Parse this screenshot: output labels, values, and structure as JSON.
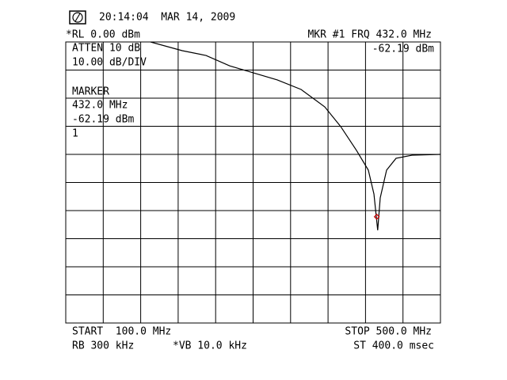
{
  "chart_data": {
    "type": "line",
    "x": [
      190.5,
      224.3,
      249.7,
      275,
      300.4,
      325.8,
      351.2,
      376.5,
      393.5,
      410.4,
      423,
      429,
      433,
      435.7,
      442.5,
      452.6,
      469.6,
      500
    ],
    "values": [
      0,
      -3.1,
      -4.8,
      -8.5,
      -11,
      -13.5,
      -16.9,
      -23.1,
      -30.1,
      -38.6,
      -45.6,
      -54.1,
      -67,
      -55.5,
      -45.6,
      -41.4,
      -40.3,
      -40
    ],
    "color": "#000000",
    "xlim": [
      100,
      500
    ],
    "ylim": [
      -100,
      0
    ],
    "grid": true,
    "marker": {
      "x": 432,
      "y": -62.19,
      "color": "#cc0000"
    },
    "annotations": [
      "20:14:04  MAR 14, 2009",
      "*RL 0.00 dBm",
      "MKR #1 FRQ 432.0 MHz",
      "ATTEN 10 dB",
      "-62.19 dBm",
      "10.00 dB/DIV",
      "MARKER",
      "432.0 MHz",
      "-62.19 dBm",
      "1",
      "START  100.0 MHz",
      "STOP 500.0 MHz",
      "RB 300 kHz",
      "*VB 10.0 kHz",
      "ST 400.0 msec"
    ]
  }
}
